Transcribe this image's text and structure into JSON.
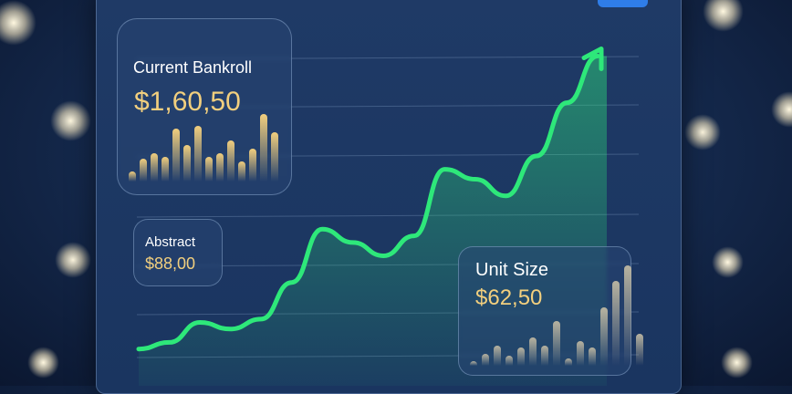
{
  "colors": {
    "accent": "#2ee87a",
    "gold": "#f2cf7e",
    "panel": "#1f3a66"
  },
  "bankroll": {
    "label": "Current Bankroll",
    "value": "$1,60,50",
    "bars": [
      0.12,
      0.28,
      0.35,
      0.3,
      0.65,
      0.45,
      0.68,
      0.3,
      0.35,
      0.5,
      0.25,
      0.4,
      0.82,
      0.6
    ]
  },
  "abstract": {
    "label": "Abstract",
    "value": "$88,00"
  },
  "unit_size": {
    "label": "Unit Size",
    "value": "$62,50",
    "bars": [
      0.05,
      0.12,
      0.2,
      0.1,
      0.18,
      0.28,
      0.2,
      0.45,
      0.07,
      0.25,
      0.18,
      0.58,
      0.85,
      1.0,
      0.32
    ]
  },
  "trend": {
    "points": [
      2,
      4,
      10,
      8,
      11,
      22,
      38,
      34,
      30,
      36,
      56,
      53,
      48,
      60,
      76,
      90
    ],
    "arrow_icon": "arrow-up-icon"
  }
}
